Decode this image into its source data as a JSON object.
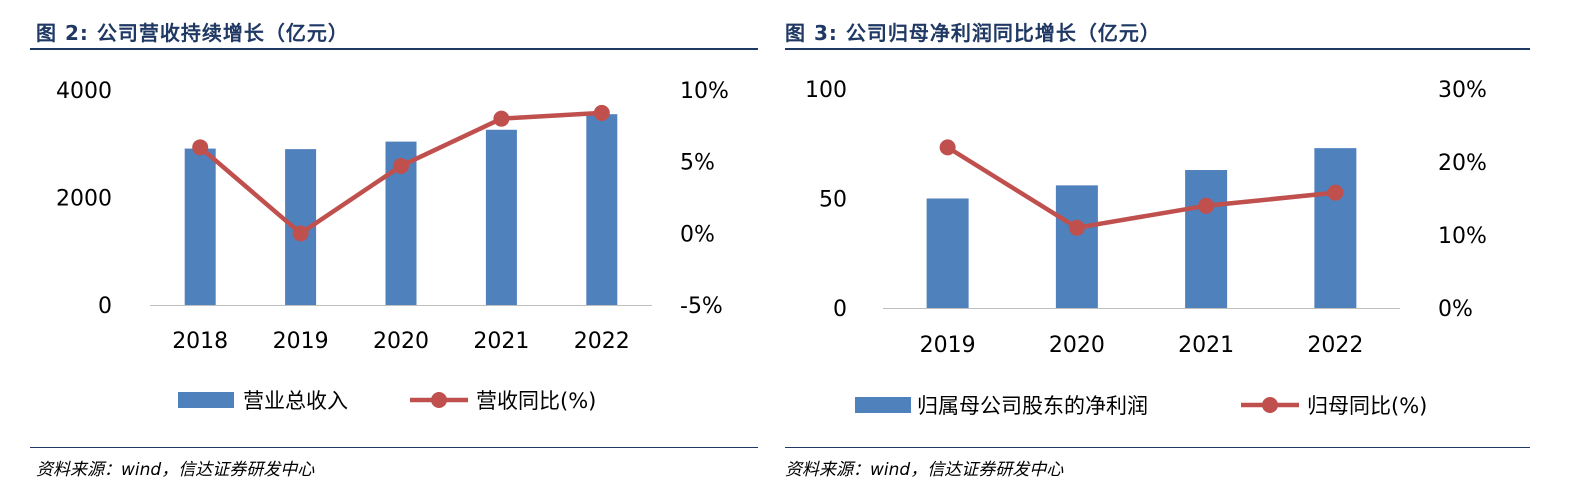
{
  "left": {
    "title": "图 2: 公司营收持续增长（亿元）",
    "source": "资料来源：wind，信达证券研发中心",
    "y_left_ticks": [
      "4000",
      "2000",
      "0"
    ],
    "y_right_ticks": [
      "10%",
      "5%",
      "0%",
      "-5%"
    ],
    "legend_bar": "营业总收入",
    "legend_line": "营收同比(%)"
  },
  "right": {
    "title": "图 3: 公司归母净利润同比增长（亿元）",
    "source": "资料来源：wind，信达证券研发中心",
    "y_left_ticks": [
      "100",
      "50",
      "0"
    ],
    "y_right_ticks": [
      "30%",
      "20%",
      "10%",
      "0%"
    ],
    "legend_bar": "归属母公司股东的净利润",
    "legend_line": "归母同比(%)"
  },
  "colors": {
    "bar": "#4f81bd",
    "line": "#c0504d",
    "title": "#1f3864",
    "axis": "#bfbfbf"
  },
  "chart_data": [
    {
      "type": "bar+line",
      "title": "图 2: 公司营收持续增长（亿元）",
      "categories": [
        "2018",
        "2019",
        "2020",
        "2021",
        "2022"
      ],
      "series": [
        {
          "name": "营业总收入",
          "type": "bar",
          "axis": "left",
          "values": [
            2910,
            2900,
            3040,
            3260,
            3550
          ]
        },
        {
          "name": "营收同比(%)",
          "type": "line",
          "axis": "right",
          "values": [
            6.0,
            0.0,
            4.7,
            8.0,
            8.4
          ]
        }
      ],
      "ylim_left": [
        0,
        4000
      ],
      "ylim_right": [
        -5,
        10
      ],
      "legend": "bottom"
    },
    {
      "type": "bar+line",
      "title": "图 3: 公司归母净利润同比增长（亿元）",
      "categories": [
        "2019",
        "2020",
        "2021",
        "2022"
      ],
      "series": [
        {
          "name": "归属母公司股东的净利润",
          "type": "bar",
          "axis": "left",
          "values": [
            50,
            56,
            63,
            73
          ]
        },
        {
          "name": "归母同比(%)",
          "type": "line",
          "axis": "right",
          "values": [
            22,
            11,
            14,
            15.8
          ]
        }
      ],
      "ylim_left": [
        0,
        100
      ],
      "ylim_right": [
        0,
        30
      ],
      "legend": "bottom"
    }
  ]
}
